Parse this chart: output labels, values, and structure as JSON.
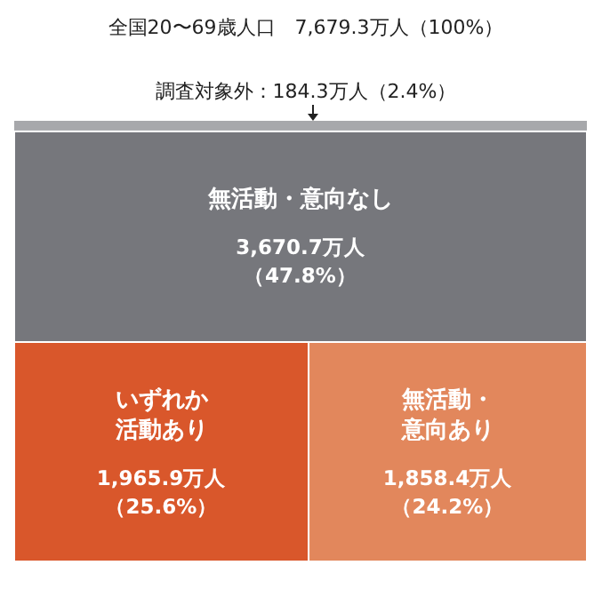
{
  "chart_data": {
    "type": "other",
    "title": "全国20〜69歳人口　7,679.3万人（100%）",
    "categories": [
      "調査対象外",
      "無活動・意向なし",
      "いずれか活動あり",
      "無活動・意向あり"
    ],
    "values": [
      184.3,
      3670.7,
      1965.9,
      1858.4
    ],
    "colors": [
      "#a7a8ab",
      "#76777c",
      "#d9572b",
      "#e2875c"
    ],
    "value_labels": [
      "：184.3万人（2.4%）",
      "3,670.7万人（47.8%）",
      "1,965.9万人（25.6%）",
      "1,858.4万人（24.2%）"
    ]
  }
}
